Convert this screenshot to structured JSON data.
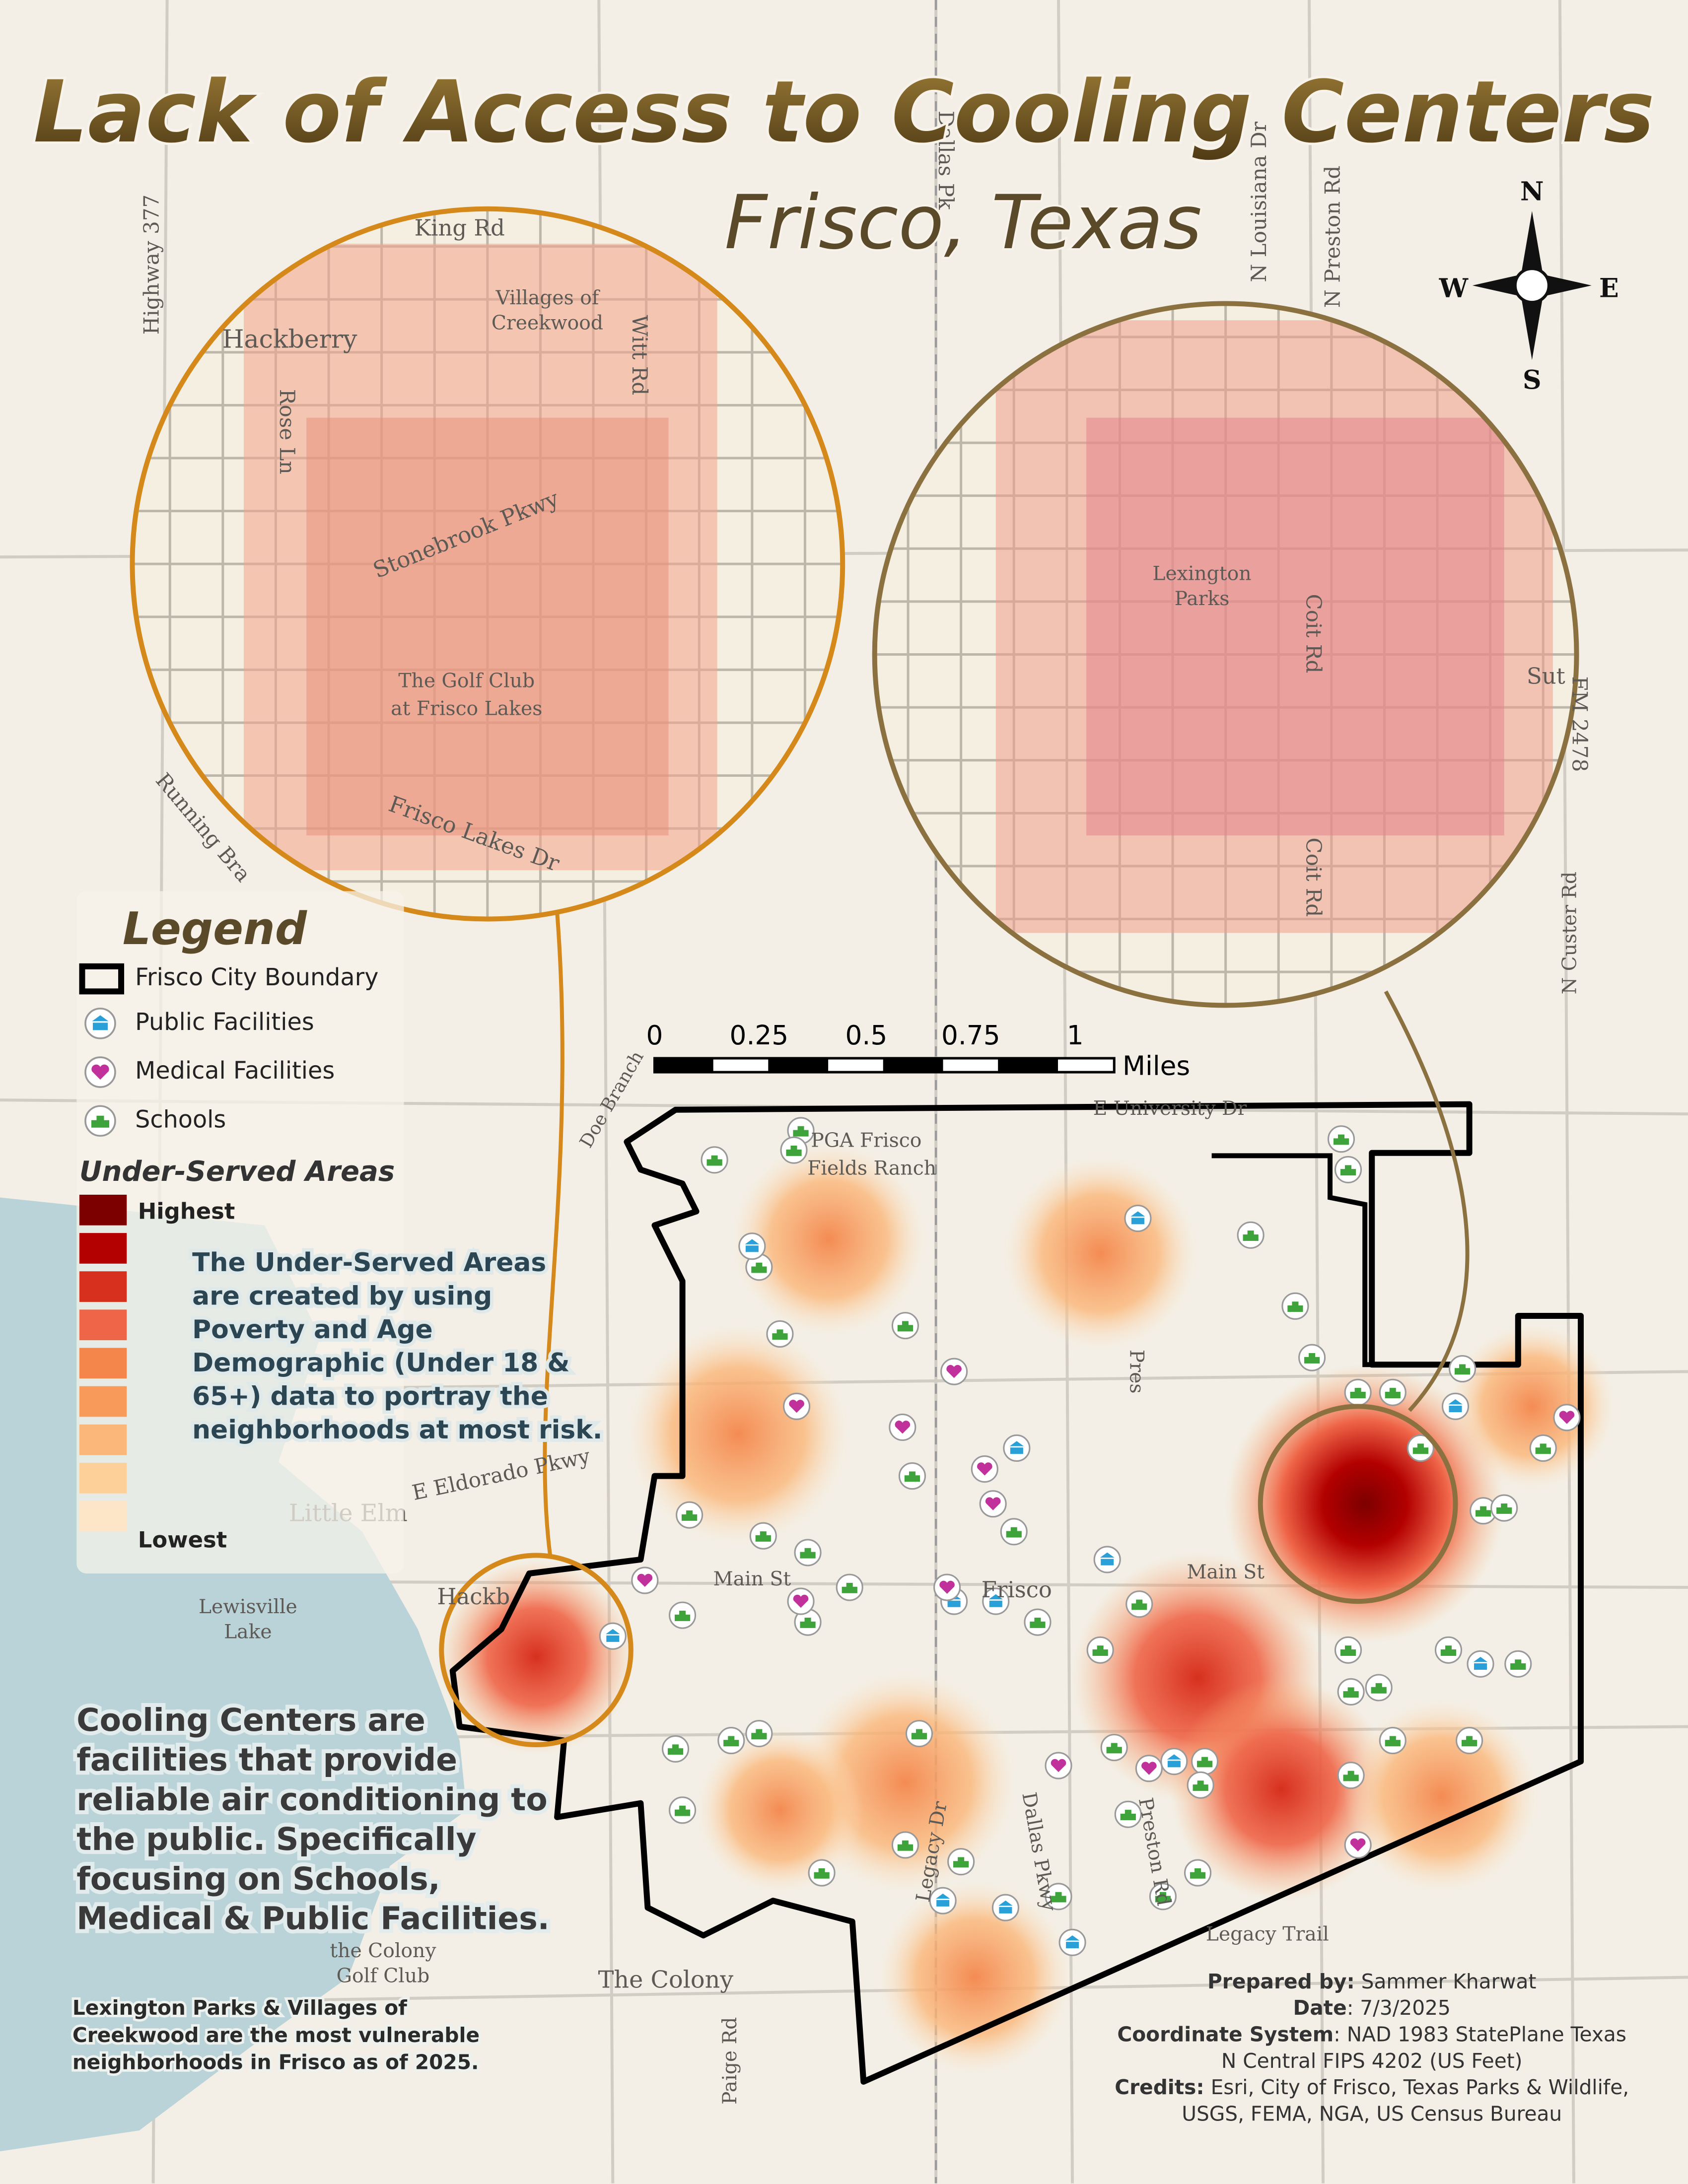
{
  "title": "Lack of Access to Cooling Centers",
  "subtitle": "Frisco, Texas",
  "compass": {
    "n": "N",
    "s": "S",
    "e": "E",
    "w": "W"
  },
  "legend": {
    "title": "Legend",
    "items": [
      "Frisco City Boundary",
      "Public Facilities",
      "Medical Facilities",
      "Schools"
    ],
    "ramp_title": "Under-Served Areas",
    "high": "Highest",
    "low": "Lowest",
    "colors": [
      "#7d0000",
      "#b30000",
      "#d7301f",
      "#ef6548",
      "#f4864c",
      "#f79a5a",
      "#fbb77a",
      "#fdd09a",
      "#fde6c8"
    ],
    "note_lines": [
      "The Under-Served Areas",
      "are created by using",
      "Poverty and Age",
      "Demographic (Under 18 &",
      "65+) data to portray the",
      "neighborhoods at most risk."
    ]
  },
  "scale_bar": {
    "ticks": [
      "0",
      "0.25",
      "0.5",
      "0.75",
      "1"
    ],
    "unit": "Miles"
  },
  "cooling_note": [
    "Cooling Centers are",
    "facilities that provide",
    "reliable air conditioning to",
    "the public. Specifically",
    "focusing on Schools,",
    "Medical & Public Facilities."
  ],
  "vulnerable_note": [
    "Lexington Parks & Villages of",
    "Creekwood are the most vulnerable",
    "neighborhoods in Frisco as of 2025."
  ],
  "credits": [
    {
      "label": "Prepared by:",
      "text": " Sammer Kharwat"
    },
    {
      "label": "Date",
      "text": ": 7/3/2025"
    },
    {
      "label": "Coordinate System",
      "text": ": NAD 1983 StatePlane Texas"
    },
    {
      "label": "",
      "text": "N Central FIPS 4202 (US Feet)"
    },
    {
      "label": "Credits:",
      "text": " Esri, City of Frisco, Texas Parks & Wildlife,"
    },
    {
      "label": "",
      "text": "USGS, FEMA, NGA, US Census Bureau"
    }
  ],
  "map_labels": [
    "Highway 377",
    "Dallas Pk",
    "N Louisiana Dr",
    "N Preston Rd",
    "King Rd",
    "Hackberry",
    "Villages of",
    "Creekwood",
    "Witt Rd",
    "Rose Ln",
    "Stonebrook Pkwy",
    "The Golf Club",
    "at Frisco Lakes",
    "Frisco Lakes Dr",
    "Running Bra",
    "Lexington",
    "Parks",
    "Coit Rd",
    "Coit Rd",
    "FM 2478",
    "N Custer Rd",
    "E University Dr",
    "PGA Frisco",
    "Fields Ranch",
    "Doe Branch",
    "E Eldorado Pkwy",
    "Little Elm",
    "Lewisville",
    "Lake",
    "Hackb",
    "Main St",
    "Main St",
    "Frisco",
    "Legacy Dr",
    "Dallas Pkwy",
    "Preston Rd",
    "Legacy Trail",
    "Paige Rd",
    "The Colony",
    "the Colony",
    "Golf Club",
    "Pres",
    "Sut"
  ]
}
